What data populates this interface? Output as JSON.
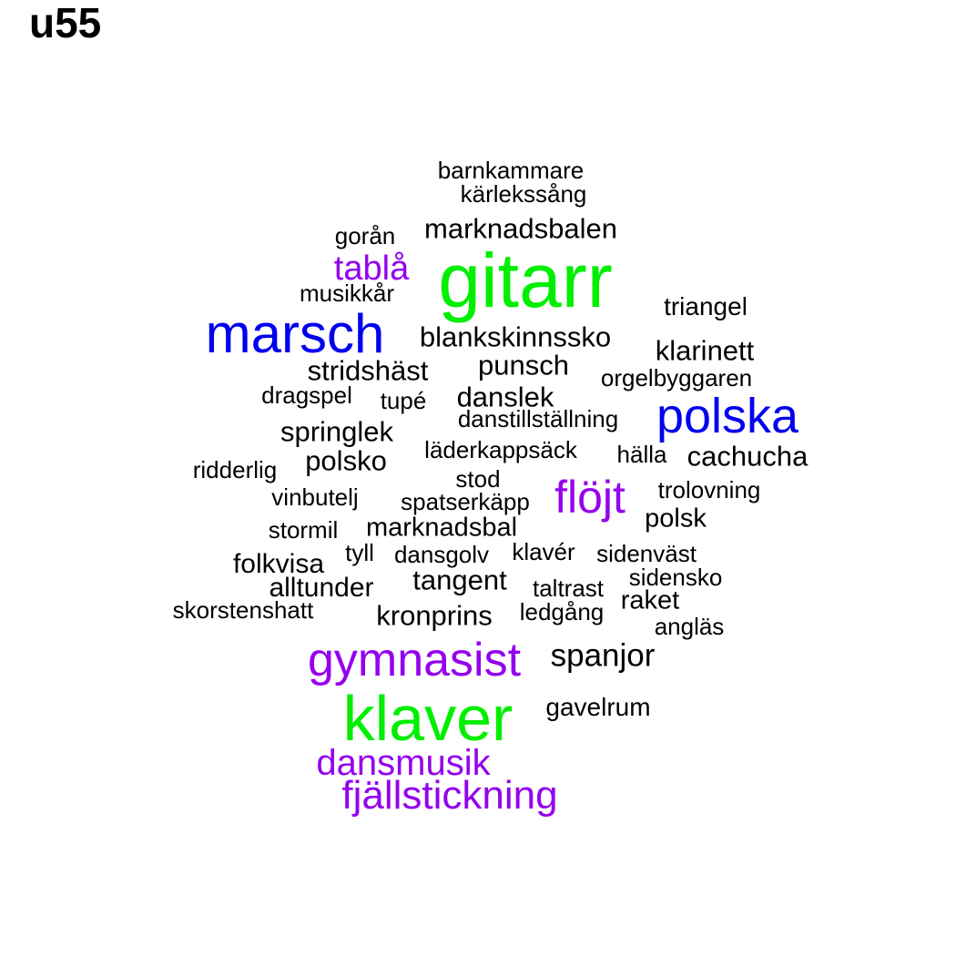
{
  "title": "u55",
  "colors": {
    "black": "#000000",
    "blue": "#0000ee",
    "green": "#00ee00",
    "purple": "#9400ee"
  },
  "words": [
    {
      "text": "gitarr",
      "color": "green",
      "weight": 10
    },
    {
      "text": "klaver",
      "color": "green",
      "weight": 9
    },
    {
      "text": "marsch",
      "color": "blue",
      "weight": 8
    },
    {
      "text": "polska",
      "color": "blue",
      "weight": 8
    },
    {
      "text": "gymnasist",
      "color": "purple",
      "weight": 7
    },
    {
      "text": "flöjt",
      "color": "purple",
      "weight": 7
    },
    {
      "text": "fjällstickning",
      "color": "purple",
      "weight": 6
    },
    {
      "text": "dansmusik",
      "color": "purple",
      "weight": 6
    },
    {
      "text": "tablå",
      "color": "purple",
      "weight": 5
    },
    {
      "text": "barnkammare",
      "color": "black",
      "weight": 2
    },
    {
      "text": "kärlekssång",
      "color": "black",
      "weight": 2
    },
    {
      "text": "marknadsbalen",
      "color": "black",
      "weight": 3
    },
    {
      "text": "gorån",
      "color": "black",
      "weight": 2
    },
    {
      "text": "musikkår",
      "color": "black",
      "weight": 2
    },
    {
      "text": "triangel",
      "color": "black",
      "weight": 2
    },
    {
      "text": "blankskinnssko",
      "color": "black",
      "weight": 3
    },
    {
      "text": "klarinett",
      "color": "black",
      "weight": 3
    },
    {
      "text": "stridshäst",
      "color": "black",
      "weight": 3
    },
    {
      "text": "punsch",
      "color": "black",
      "weight": 3
    },
    {
      "text": "orgelbyggaren",
      "color": "black",
      "weight": 2
    },
    {
      "text": "dragspel",
      "color": "black",
      "weight": 2
    },
    {
      "text": "tupé",
      "color": "black",
      "weight": 2
    },
    {
      "text": "danslek",
      "color": "black",
      "weight": 3
    },
    {
      "text": "danstillställning",
      "color": "black",
      "weight": 2
    },
    {
      "text": "springlek",
      "color": "black",
      "weight": 3
    },
    {
      "text": "läderkappsäck",
      "color": "black",
      "weight": 2
    },
    {
      "text": "hälla",
      "color": "black",
      "weight": 2
    },
    {
      "text": "cachucha",
      "color": "black",
      "weight": 3
    },
    {
      "text": "ridderlig",
      "color": "black",
      "weight": 2
    },
    {
      "text": "polsko",
      "color": "black",
      "weight": 3
    },
    {
      "text": "stod",
      "color": "black",
      "weight": 2
    },
    {
      "text": "trolovning",
      "color": "black",
      "weight": 2
    },
    {
      "text": "vinbutelj",
      "color": "black",
      "weight": 2
    },
    {
      "text": "spatserkäpp",
      "color": "black",
      "weight": 2
    },
    {
      "text": "polsk",
      "color": "black",
      "weight": 3
    },
    {
      "text": "stormil",
      "color": "black",
      "weight": 2
    },
    {
      "text": "marknadsbal",
      "color": "black",
      "weight": 3
    },
    {
      "text": "tyll",
      "color": "black",
      "weight": 2
    },
    {
      "text": "dansgolv",
      "color": "black",
      "weight": 2
    },
    {
      "text": "klavér",
      "color": "black",
      "weight": 2
    },
    {
      "text": "sidenväst",
      "color": "black",
      "weight": 2
    },
    {
      "text": "folkvisa",
      "color": "black",
      "weight": 3
    },
    {
      "text": "tangent",
      "color": "black",
      "weight": 3
    },
    {
      "text": "sidensko",
      "color": "black",
      "weight": 2
    },
    {
      "text": "alltunder",
      "color": "black",
      "weight": 3
    },
    {
      "text": "taltrast",
      "color": "black",
      "weight": 2
    },
    {
      "text": "raket",
      "color": "black",
      "weight": 3
    },
    {
      "text": "skorstenshatt",
      "color": "black",
      "weight": 2
    },
    {
      "text": "kronprins",
      "color": "black",
      "weight": 3
    },
    {
      "text": "ledgång",
      "color": "black",
      "weight": 2
    },
    {
      "text": "angläs",
      "color": "black",
      "weight": 2
    },
    {
      "text": "spanjor",
      "color": "black",
      "weight": 4
    },
    {
      "text": "gavelrum",
      "color": "black",
      "weight": 2
    }
  ]
}
